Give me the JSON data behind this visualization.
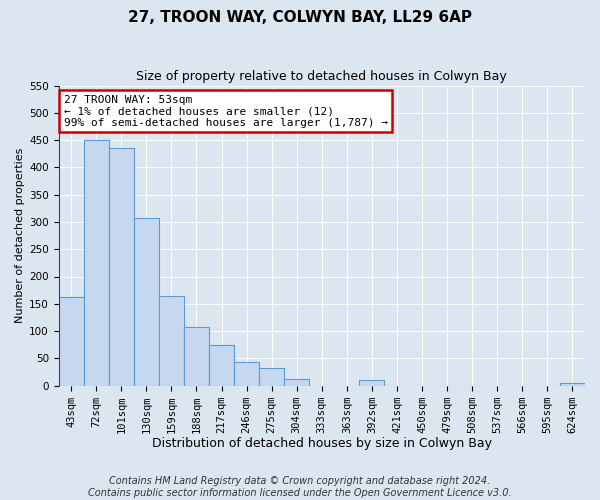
{
  "title": "27, TROON WAY, COLWYN BAY, LL29 6AP",
  "subtitle": "Size of property relative to detached houses in Colwyn Bay",
  "xlabel": "Distribution of detached houses by size in Colwyn Bay",
  "ylabel": "Number of detached properties",
  "bar_labels": [
    "43sqm",
    "72sqm",
    "101sqm",
    "130sqm",
    "159sqm",
    "188sqm",
    "217sqm",
    "246sqm",
    "275sqm",
    "304sqm",
    "333sqm",
    "363sqm",
    "392sqm",
    "421sqm",
    "450sqm",
    "479sqm",
    "508sqm",
    "537sqm",
    "566sqm",
    "595sqm",
    "624sqm"
  ],
  "bar_values": [
    163,
    450,
    435,
    307,
    165,
    107,
    74,
    43,
    33,
    12,
    0,
    0,
    10,
    0,
    0,
    0,
    0,
    0,
    0,
    0,
    4
  ],
  "bar_color": "#c5d8ef",
  "bar_edge_color": "#5b9bd5",
  "highlight_color": "#cc0000",
  "annotation_title": "27 TROON WAY: 53sqm",
  "annotation_line1": "← 1% of detached houses are smaller (12)",
  "annotation_line2": "99% of semi-detached houses are larger (1,787) →",
  "annotation_box_color": "#ffffff",
  "annotation_border_color": "#cc0000",
  "ylim_max": 550,
  "yticks": [
    0,
    50,
    100,
    150,
    200,
    250,
    300,
    350,
    400,
    450,
    500,
    550
  ],
  "footer_line1": "Contains HM Land Registry data © Crown copyright and database right 2024.",
  "footer_line2": "Contains public sector information licensed under the Open Government Licence v3.0.",
  "bg_color": "#dce6f1",
  "plot_bg_color": "#dce6f1",
  "grid_color": "#ffffff",
  "title_fontsize": 11,
  "subtitle_fontsize": 9,
  "xlabel_fontsize": 9,
  "ylabel_fontsize": 8,
  "tick_fontsize": 7.5,
  "annotation_fontsize": 8,
  "footer_fontsize": 7
}
